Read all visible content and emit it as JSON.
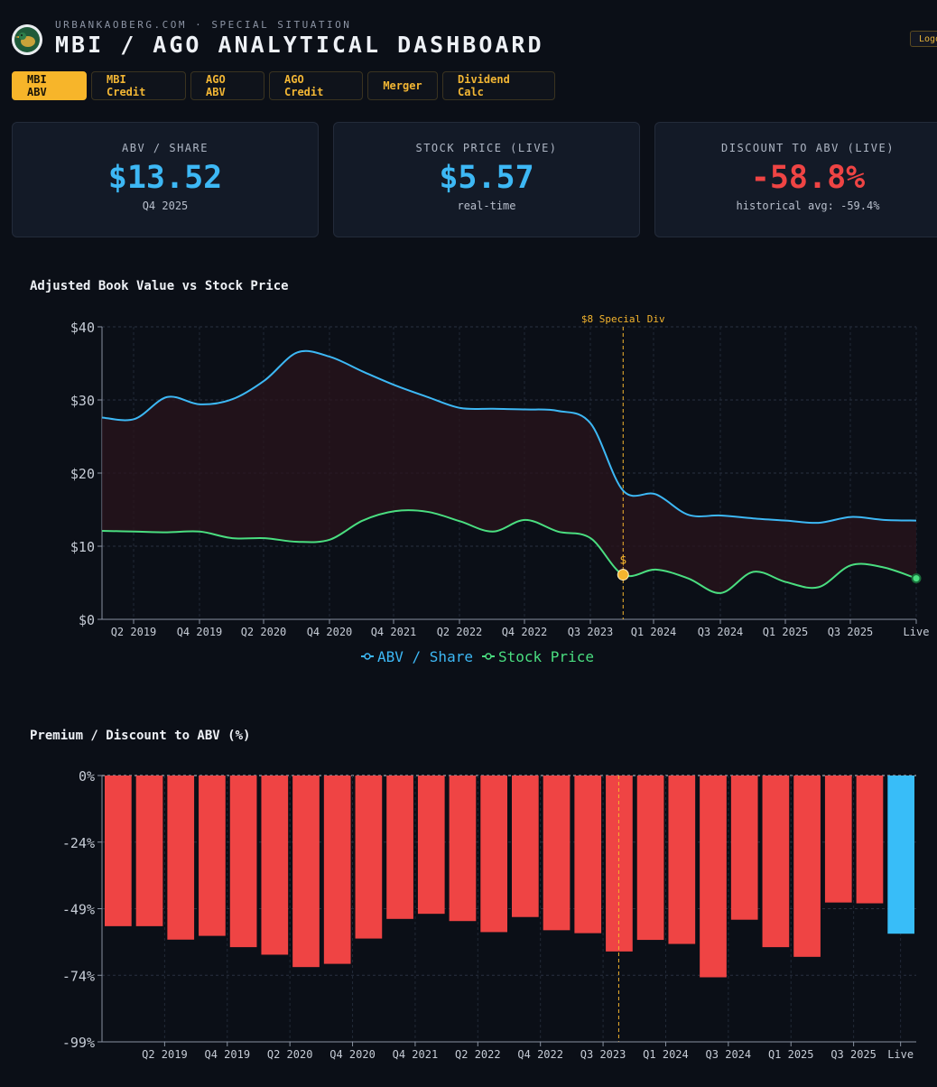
{
  "header": {
    "kicker": "URBANKAOBERG.COM · SPECIAL SITUATION",
    "title": "MBI / AGO ANALYTICAL DASHBOARD",
    "logout_label": "Logout"
  },
  "tabs": [
    {
      "label": "MBI ABV",
      "active": true
    },
    {
      "label": "MBI Credit",
      "active": false
    },
    {
      "label": "AGO ABV",
      "active": false
    },
    {
      "label": "AGO Credit",
      "active": false
    },
    {
      "label": "Merger",
      "active": false
    },
    {
      "label": "Dividend Calc",
      "active": false
    }
  ],
  "cards": [
    {
      "label": "ABV / SHARE",
      "value": "$13.52",
      "sub": "Q4 2025",
      "color": "#3db8f5"
    },
    {
      "label": "STOCK PRICE (LIVE)",
      "value": "$5.57",
      "sub": "real-time",
      "color": "#3db8f5"
    },
    {
      "label": "DISCOUNT TO ABV (LIVE)",
      "value": "-58.8%",
      "sub": "historical avg: -59.4%",
      "color": "#ef4444"
    }
  ],
  "colors": {
    "abv": "#3db8f5",
    "price": "#4ade80",
    "accent": "#f5b52e",
    "negative": "#ef4444",
    "live": "#38bdf8"
  },
  "chart_data": [
    {
      "type": "line",
      "title": "Adjusted Book Value vs Stock Price",
      "x_ticks": [
        "Q2 2019",
        "Q4 2019",
        "Q2 2020",
        "Q4 2020",
        "Q4 2021",
        "Q2 2022",
        "Q4 2022",
        "Q3 2023",
        "Q1 2024",
        "Q3 2024",
        "Q1 2025",
        "Q3 2025",
        "Live"
      ],
      "y_ticks": [
        "$0",
        "$10",
        "$20",
        "$30",
        "$40"
      ],
      "ylim": [
        0,
        40
      ],
      "xlim": [
        0,
        25
      ],
      "series": [
        {
          "name": "ABV / Share",
          "x": [
            0,
            1,
            2,
            3,
            4,
            5,
            6,
            7,
            8,
            9,
            10,
            11,
            12,
            13,
            14,
            15,
            16,
            17,
            18,
            19,
            20,
            21,
            22,
            23,
            24,
            25
          ],
          "values": [
            27.6,
            27.4,
            30.4,
            29.4,
            30.1,
            32.7,
            36.5,
            35.9,
            33.9,
            32.0,
            30.4,
            28.9,
            28.8,
            28.7,
            28.5,
            26.8,
            17.6,
            17.1,
            14.3,
            14.2,
            13.8,
            13.5,
            13.2,
            14.0,
            13.6,
            13.5
          ]
        },
        {
          "name": "Stock Price",
          "x": [
            0,
            1,
            2,
            3,
            4,
            5,
            6,
            7,
            8,
            9,
            10,
            11,
            12,
            13,
            14,
            15,
            16,
            17,
            18,
            19,
            20,
            21,
            22,
            23,
            24,
            25
          ],
          "values": [
            12.1,
            12.0,
            11.9,
            12.0,
            11.1,
            11.1,
            10.6,
            10.9,
            13.5,
            14.8,
            14.7,
            13.4,
            12.0,
            13.6,
            12.0,
            11.1,
            6.1,
            6.8,
            5.6,
            3.6,
            6.5,
            5.1,
            4.4,
            7.4,
            7.1,
            5.6
          ]
        }
      ],
      "annotation": {
        "x": 16,
        "label": "$8 Special Div",
        "marker": "$"
      },
      "legend": [
        {
          "name": "ABV / Share"
        },
        {
          "name": "Stock Price"
        }
      ]
    },
    {
      "type": "bar",
      "title": "Premium / Discount to ABV (%)",
      "x_ticks": [
        "Q2 2019",
        "Q4 2019",
        "Q2 2020",
        "Q4 2020",
        "Q4 2021",
        "Q2 2022",
        "Q4 2022",
        "Q3 2023",
        "Q1 2024",
        "Q3 2024",
        "Q1 2025",
        "Q3 2025",
        "Live"
      ],
      "y_ticks": [
        "0%",
        "-24%",
        "-49%",
        "-74%",
        "-99%"
      ],
      "ylim": [
        -99,
        0
      ],
      "values": [
        -56,
        -56,
        -61,
        -59.6,
        -63.8,
        -66.6,
        -71.2,
        -70,
        -60.6,
        -53.3,
        -51.4,
        -54.1,
        -58.2,
        -52.6,
        -57.5,
        -58.6,
        -65.4,
        -61.1,
        -62.6,
        -75,
        -53.6,
        -63.8,
        -67.4,
        -47.2,
        -47.5,
        -58.8
      ],
      "highlight_last": true,
      "annotation_index": 16
    }
  ]
}
